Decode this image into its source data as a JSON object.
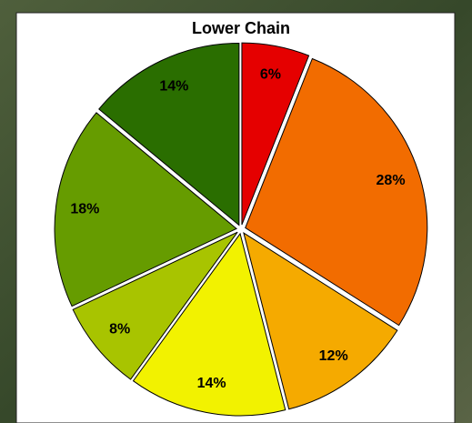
{
  "chart_data": {
    "type": "pie",
    "title": "Lower Chain",
    "values": [
      6,
      28,
      12,
      14,
      8,
      18,
      14
    ],
    "value_labels": [
      "6%",
      "28%",
      "12%",
      "14%",
      "8%",
      "18%",
      "14%"
    ],
    "colors": [
      "#e50000",
      "#f26c00",
      "#f5aa00",
      "#f2f200",
      "#a8c400",
      "#669c00",
      "#2a6e00"
    ]
  }
}
